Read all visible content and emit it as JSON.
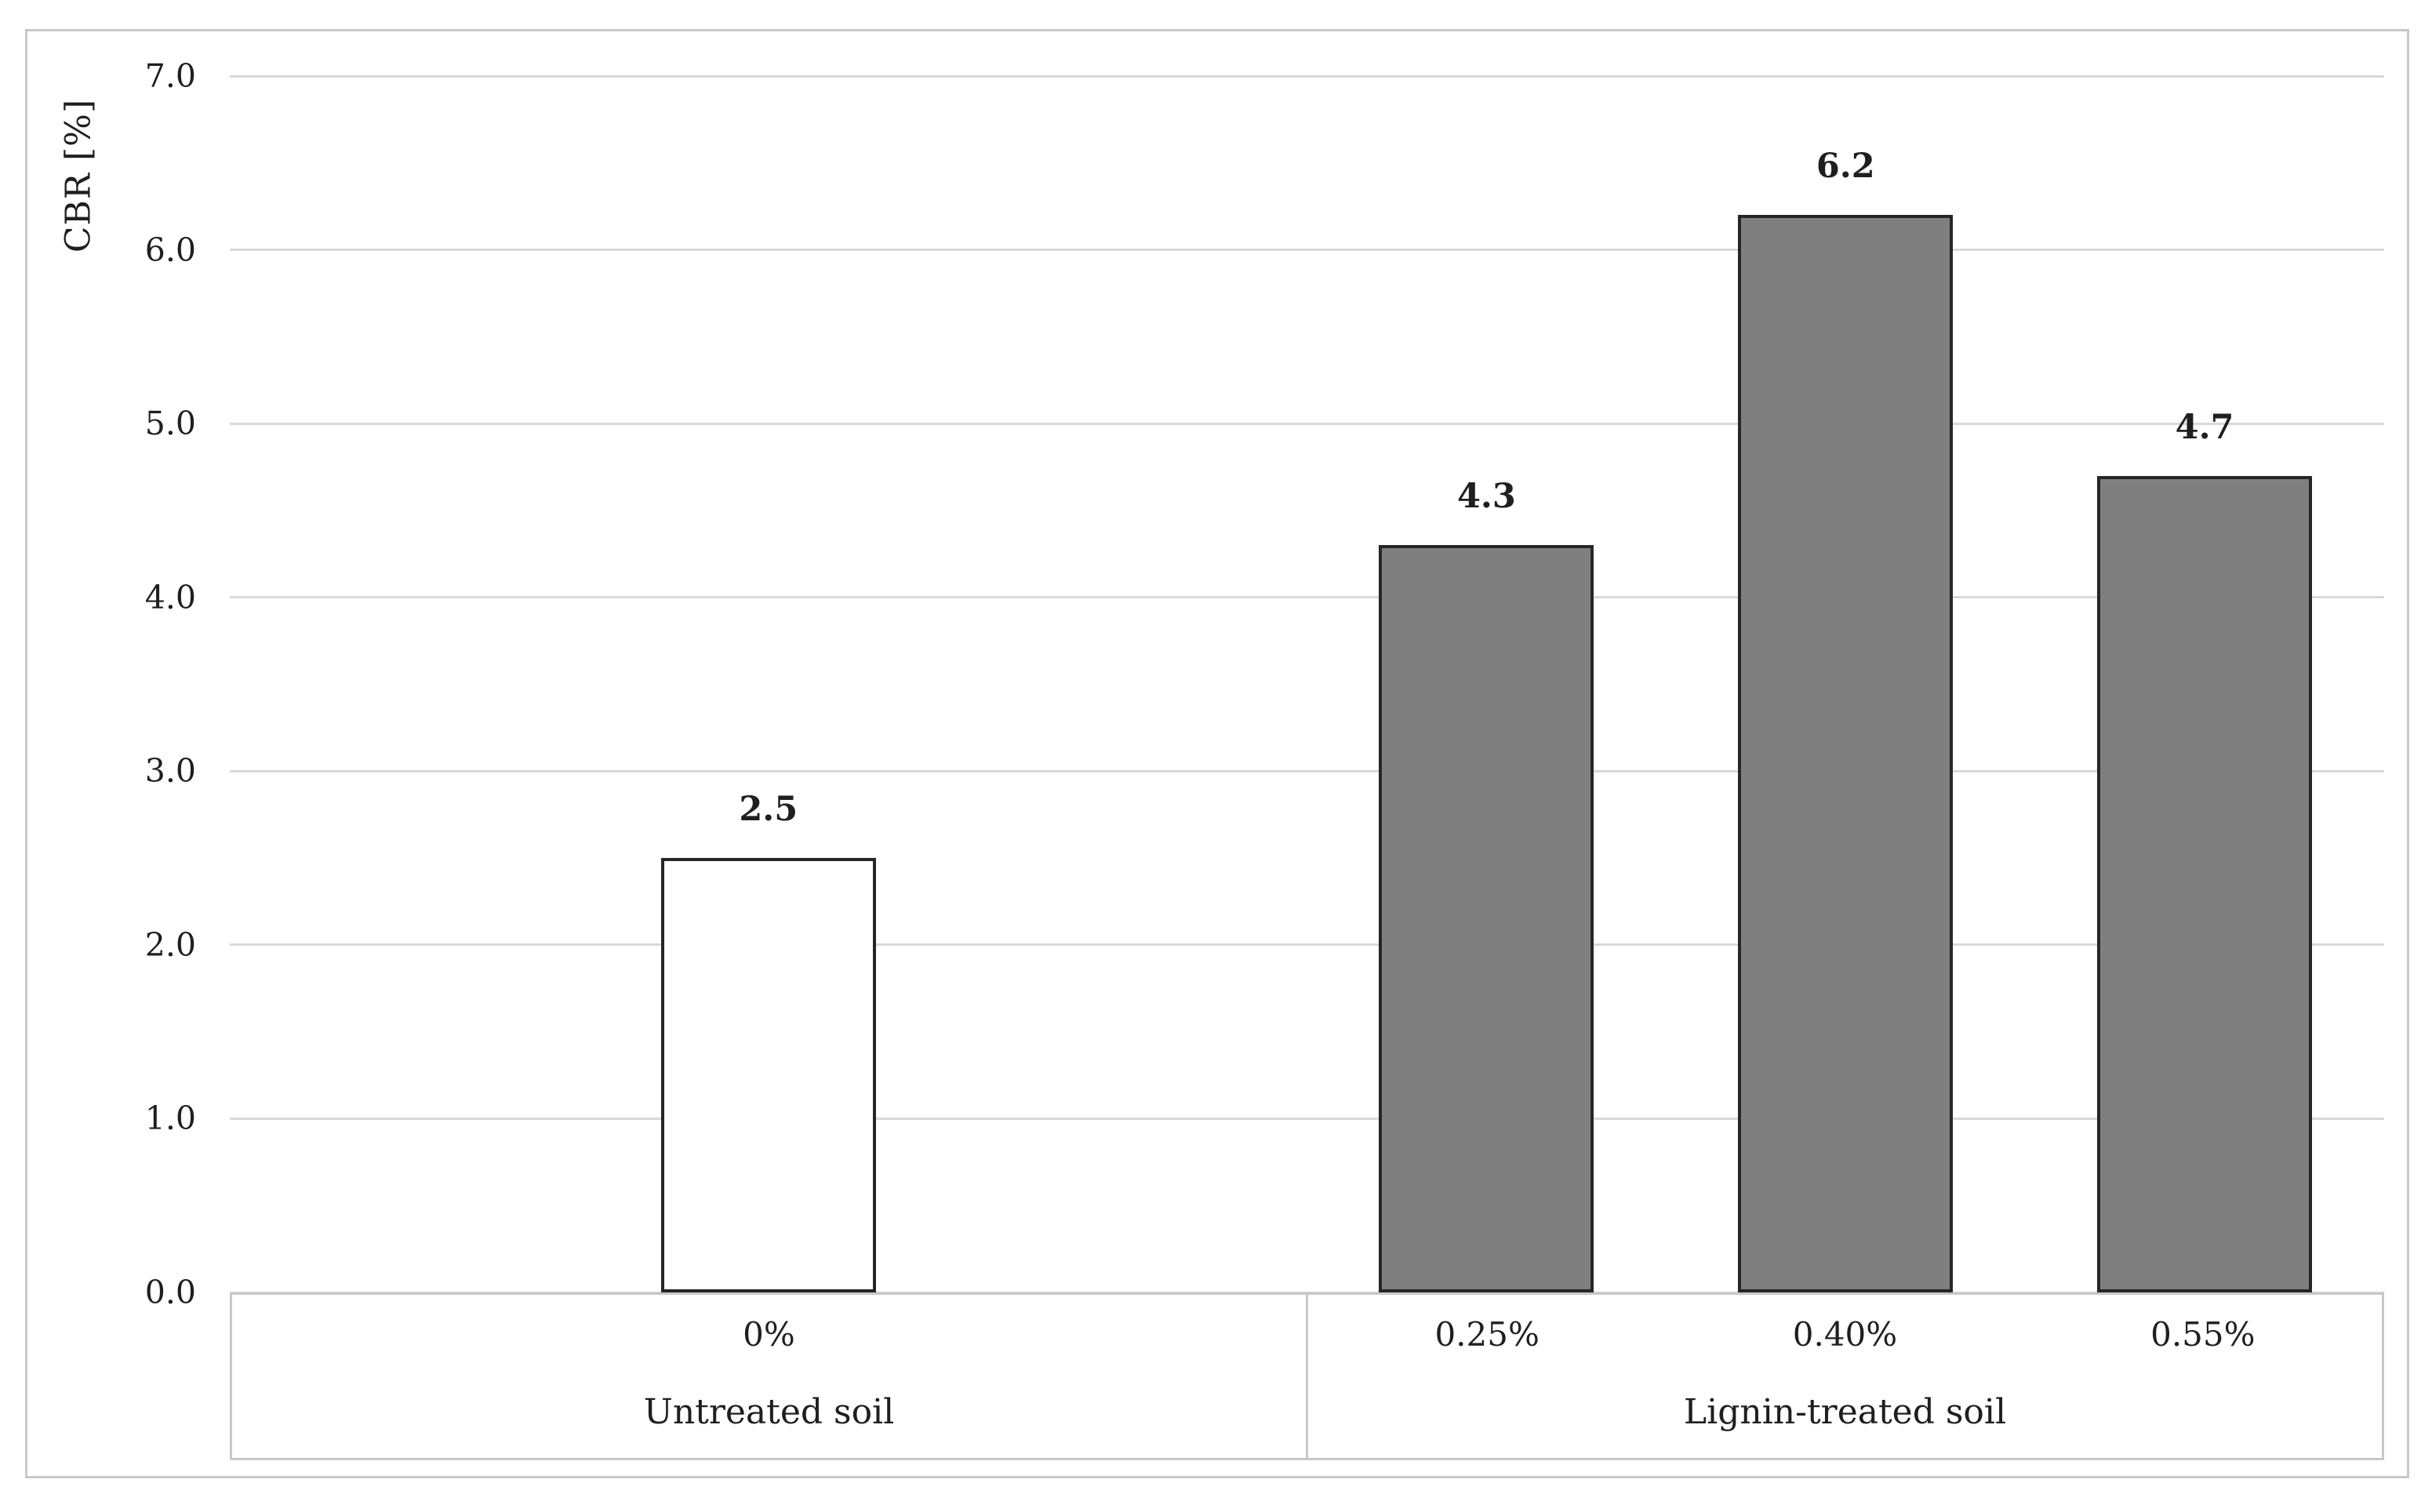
{
  "figure": {
    "background": "#FFFFFF",
    "border_color": "#C8C8C8"
  },
  "chart_data": {
    "type": "bar",
    "title": "",
    "ylabel": "CBR [%]",
    "xlabel": "",
    "ylim": [
      0,
      7
    ],
    "ytick_step": 1.0,
    "ytick_labels": [
      "0.0",
      "1.0",
      "2.0",
      "3.0",
      "4.0",
      "5.0",
      "6.0",
      "7.0"
    ],
    "grid": true,
    "legend": false,
    "groups": [
      {
        "label": "Untreated soil",
        "bar_fill": "#FFFFFF",
        "items": [
          {
            "category": "0%",
            "value": 2.5,
            "value_label": "2.5"
          }
        ]
      },
      {
        "label": "Lignin-treated soil",
        "bar_fill": "#7F7F7F",
        "items": [
          {
            "category": "0.25%",
            "value": 4.3,
            "value_label": "4.3"
          },
          {
            "category": "0.40%",
            "value": 6.2,
            "value_label": "6.2"
          },
          {
            "category": "0.55%",
            "value": 4.7,
            "value_label": "4.7"
          }
        ]
      }
    ],
    "colors": {
      "bar_border": "#262626",
      "gridline": "#D9D9D9",
      "axis_box_border": "#C8C8C8",
      "text": "#1F1F1F"
    }
  }
}
